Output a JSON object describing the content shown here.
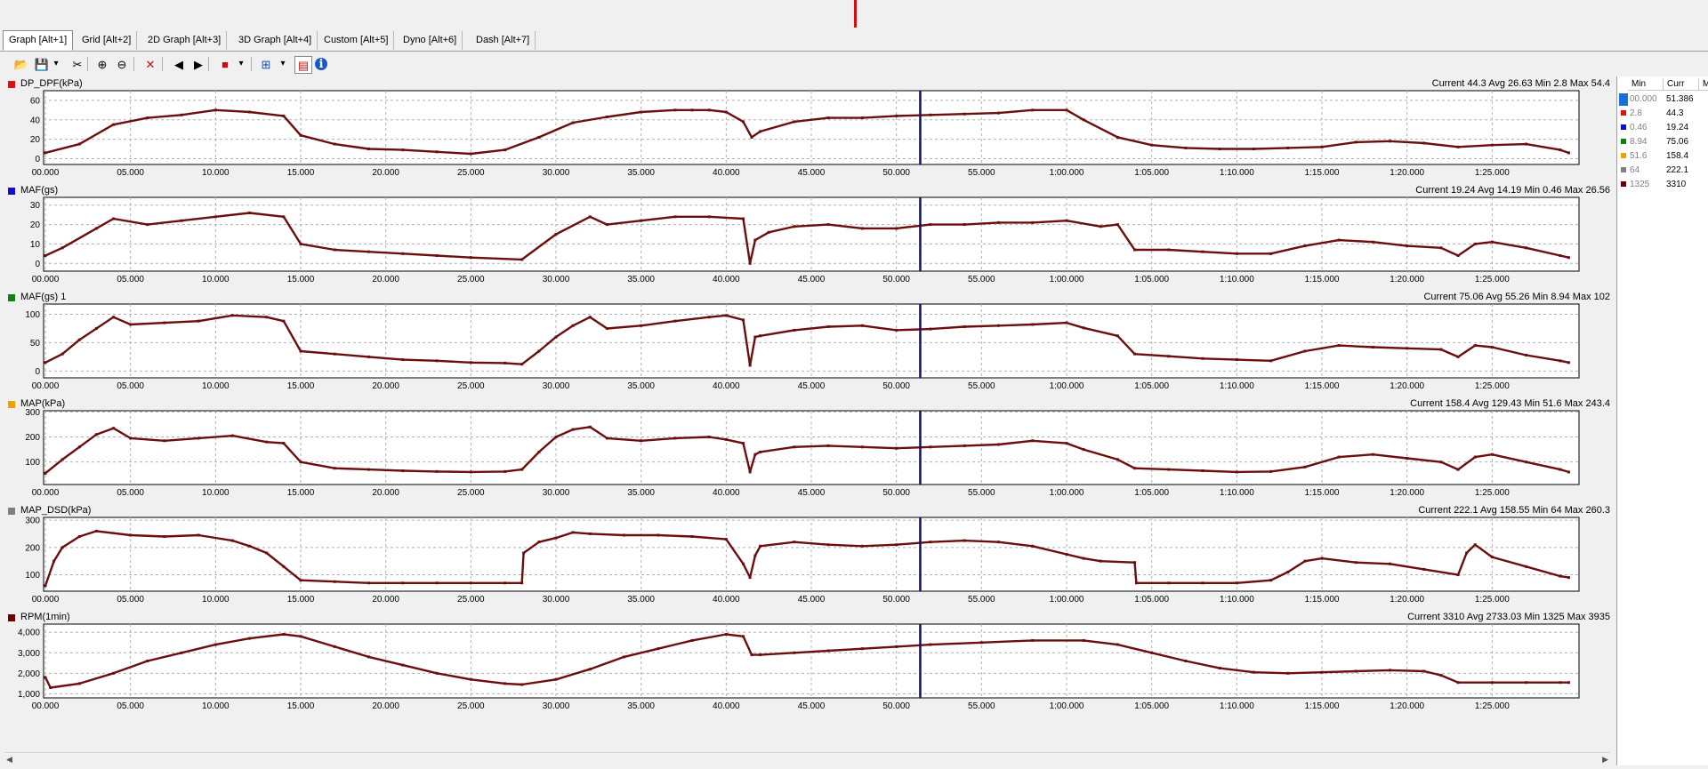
{
  "tabs": [
    {
      "label": "Graph [Alt+1]",
      "active": true
    },
    {
      "label": "Grid [Alt+2]"
    },
    {
      "label": "2D Graph [Alt+3]"
    },
    {
      "label": "3D Graph [Alt+4]"
    },
    {
      "label": "Custom [Alt+5]"
    },
    {
      "label": "Dyno [Alt+6]"
    },
    {
      "label": "Dash [Alt+7]"
    }
  ],
  "toolbar_icons": [
    "open-icon",
    "save-icon",
    "dropdown-icon",
    "cut-icon",
    "zoom-in-icon",
    "zoom-out-icon",
    "delete-icon",
    "prev-icon",
    "next-icon",
    "record-icon",
    "dropdown-icon",
    "layout-icon",
    "dropdown-icon",
    "chart-settings-icon",
    "info-icon"
  ],
  "x_ticks": [
    "00.000",
    "05.000",
    "10.000",
    "15.000",
    "20.000",
    "25.000",
    "30.000",
    "35.000",
    "40.000",
    "45.000",
    "50.000",
    "55.000",
    "1:00.000",
    "1:05.000",
    "1:10.000",
    "1:15.000",
    "1:20.000",
    "1:25.000"
  ],
  "cursor_time_min": 51.4,
  "series_color": "#6b0e0e",
  "cursor_color": "#101070",
  "chart_data": [
    {
      "type": "line",
      "title": "DP_DPF(kPa)",
      "swatch": "#e01010",
      "stats": "Current 44.3 Avg 26.63 Min 2.8 Max 54.4",
      "ylim": [
        -6,
        70
      ],
      "yticks": [
        0,
        20,
        40,
        60
      ],
      "ytick_labels": [
        "0",
        "20",
        "40",
        "60"
      ],
      "x": [
        0,
        2,
        4,
        6,
        8,
        10,
        12,
        14,
        15,
        17,
        19,
        21,
        23,
        25,
        27,
        29,
        31,
        33,
        35,
        37,
        38,
        39,
        40,
        41,
        41.5,
        42,
        44,
        46,
        48,
        50,
        52,
        54,
        56,
        58,
        60,
        61,
        63,
        65,
        67,
        69,
        71,
        73,
        75,
        77,
        79,
        81,
        83,
        85,
        87,
        89,
        89.5
      ],
      "values": [
        6,
        15,
        35,
        42,
        45,
        50,
        48,
        44,
        24,
        15,
        10,
        9,
        7,
        5,
        9,
        22,
        37,
        43,
        48,
        50,
        50,
        50,
        48,
        38,
        22,
        28,
        38,
        42,
        42,
        44,
        45,
        46,
        47,
        50,
        50,
        40,
        22,
        14,
        11,
        10,
        10,
        11,
        12,
        17,
        18,
        16,
        12,
        14,
        15,
        9,
        6
      ]
    },
    {
      "type": "line",
      "title": "MAF(gs)",
      "swatch": "#1010d0",
      "stats": "Current 19.24 Avg 14.19 Min 0.46 Max 26.56",
      "ylim": [
        -4,
        34
      ],
      "yticks": [
        0,
        10,
        20,
        30
      ],
      "ytick_labels": [
        "0",
        "10",
        "20",
        "30"
      ],
      "x": [
        0,
        1,
        3,
        4,
        6,
        8,
        10,
        12,
        14,
        15,
        17,
        19,
        21,
        23,
        25,
        28,
        30,
        32,
        33,
        35,
        37,
        39,
        41,
        41.4,
        41.7,
        42.5,
        44,
        46,
        48,
        50,
        52,
        54,
        56,
        58,
        60,
        62,
        63,
        64,
        66,
        68,
        70,
        72,
        74,
        76,
        78,
        80,
        82,
        83,
        84,
        85,
        87,
        89,
        89.5
      ],
      "values": [
        4,
        8,
        18,
        23,
        20,
        22,
        24,
        26,
        24,
        10,
        7,
        6,
        5,
        4,
        3,
        2,
        15,
        24,
        20,
        22,
        24,
        24,
        23,
        0,
        12,
        16,
        19,
        20,
        18,
        18,
        20,
        20,
        21,
        21,
        22,
        19,
        20,
        7,
        7,
        6,
        5,
        5,
        9,
        12,
        11,
        9,
        8,
        4,
        10,
        11,
        8,
        4,
        3
      ]
    },
    {
      "type": "line",
      "title": "MAF(gs) 1",
      "swatch": "#108010",
      "stats": "Current 75.06 Avg 55.26 Min 8.94 Max 102",
      "ylim": [
        -12,
        118
      ],
      "yticks": [
        0,
        50,
        100
      ],
      "ytick_labels": [
        "0",
        "50",
        "100"
      ],
      "x": [
        0,
        1,
        2,
        3,
        4,
        5,
        7,
        9,
        11,
        13,
        14,
        15,
        17,
        19,
        21,
        23,
        25,
        27,
        28,
        29,
        30,
        31,
        32,
        33,
        35,
        37,
        39,
        40,
        41,
        41.4,
        41.7,
        42,
        44,
        46,
        48,
        50,
        52,
        54,
        56,
        58,
        60,
        61,
        63,
        64,
        66,
        68,
        70,
        72,
        74,
        76,
        78,
        80,
        82,
        83,
        84,
        85,
        87,
        89,
        89.5
      ],
      "values": [
        15,
        30,
        55,
        75,
        95,
        82,
        85,
        88,
        98,
        95,
        88,
        35,
        30,
        25,
        20,
        18,
        15,
        14,
        12,
        35,
        60,
        80,
        95,
        75,
        80,
        88,
        95,
        98,
        90,
        10,
        60,
        62,
        72,
        78,
        80,
        72,
        74,
        78,
        80,
        82,
        85,
        76,
        62,
        30,
        26,
        22,
        20,
        18,
        35,
        45,
        42,
        40,
        38,
        25,
        45,
        42,
        28,
        18,
        15
      ]
    },
    {
      "type": "line",
      "title": "MAP(kPa)",
      "swatch": "#f0a000",
      "stats": "Current 158.4 Avg 129.43 Min 51.6 Max 243.4",
      "ylim": [
        10,
        305
      ],
      "yticks": [
        100,
        200,
        300
      ],
      "ytick_labels": [
        "100",
        "200",
        "300"
      ],
      "x": [
        0,
        1,
        2,
        3,
        4,
        5,
        7,
        9,
        11,
        13,
        14,
        15,
        17,
        19,
        21,
        23,
        25,
        27,
        28,
        29,
        30,
        31,
        32,
        33,
        35,
        37,
        39,
        40,
        41,
        41.4,
        41.7,
        42,
        44,
        46,
        48,
        50,
        52,
        54,
        56,
        58,
        60,
        61,
        63,
        64,
        66,
        68,
        70,
        72,
        74,
        76,
        78,
        80,
        82,
        83,
        84,
        85,
        87,
        89,
        89.5
      ],
      "values": [
        55,
        110,
        160,
        210,
        235,
        195,
        185,
        195,
        205,
        180,
        175,
        100,
        75,
        70,
        65,
        62,
        60,
        62,
        70,
        140,
        200,
        230,
        240,
        195,
        185,
        195,
        200,
        190,
        175,
        60,
        130,
        140,
        160,
        165,
        160,
        155,
        160,
        165,
        170,
        185,
        175,
        150,
        110,
        75,
        70,
        65,
        60,
        62,
        80,
        120,
        130,
        115,
        100,
        70,
        120,
        130,
        100,
        70,
        60
      ]
    },
    {
      "type": "line",
      "title": "MAP_DSD(kPa)",
      "swatch": "#808080",
      "stats": "Current 222.1 Avg 158.55 Min 64 Max 260.3",
      "ylim": [
        40,
        310
      ],
      "yticks": [
        100,
        200,
        300
      ],
      "ytick_labels": [
        "100",
        "200",
        "300"
      ],
      "x": [
        0,
        0.5,
        1,
        2,
        3,
        5,
        7,
        9,
        11,
        12,
        13,
        14,
        15,
        17,
        19,
        21,
        23,
        25,
        27,
        28,
        28.1,
        29,
        30,
        31,
        32,
        34,
        36,
        38,
        40,
        41,
        41.4,
        41.7,
        42,
        44,
        46,
        48,
        50,
        52,
        54,
        56,
        58,
        60,
        61,
        62,
        64,
        64.1,
        66,
        68,
        70,
        72,
        73,
        74,
        75,
        77,
        79,
        81,
        83,
        83.5,
        84,
        85,
        87,
        89,
        89.5
      ],
      "values": [
        60,
        150,
        200,
        240,
        260,
        245,
        240,
        245,
        225,
        205,
        180,
        130,
        80,
        75,
        70,
        70,
        70,
        70,
        70,
        70,
        180,
        220,
        235,
        255,
        250,
        245,
        245,
        240,
        230,
        140,
        90,
        170,
        205,
        220,
        210,
        205,
        210,
        220,
        225,
        220,
        205,
        175,
        160,
        150,
        145,
        70,
        70,
        70,
        70,
        80,
        110,
        150,
        160,
        145,
        140,
        120,
        100,
        180,
        210,
        165,
        130,
        95,
        90
      ]
    },
    {
      "type": "line",
      "title": "RPM(1min)",
      "swatch": "#700000",
      "stats": "Current 3310 Avg 2733.03 Min 1325 Max 3935",
      "ylim": [
        800,
        4400
      ],
      "yticks": [
        1000,
        2000,
        3000,
        4000
      ],
      "ytick_labels": [
        "1,000",
        "2,000",
        "3,000",
        "4,000"
      ],
      "x": [
        0,
        0.3,
        2,
        4,
        6,
        8,
        10,
        12,
        14,
        15,
        17,
        19,
        21,
        23,
        25,
        27,
        28,
        30,
        32,
        34,
        36,
        38,
        40,
        41,
        41.5,
        42,
        44,
        46,
        48,
        50,
        52,
        55,
        58,
        61,
        63,
        65,
        67,
        69,
        71,
        73,
        75,
        77,
        79,
        81,
        82,
        83,
        85,
        87,
        89,
        89.5
      ],
      "values": [
        1800,
        1300,
        1500,
        2000,
        2600,
        3000,
        3400,
        3700,
        3900,
        3800,
        3300,
        2800,
        2400,
        2000,
        1700,
        1500,
        1450,
        1700,
        2200,
        2800,
        3200,
        3600,
        3900,
        3800,
        2900,
        2900,
        3000,
        3100,
        3200,
        3300,
        3400,
        3500,
        3600,
        3600,
        3400,
        3000,
        2600,
        2250,
        2050,
        2000,
        2050,
        2100,
        2150,
        2100,
        1900,
        1550,
        1550,
        1550,
        1550,
        1550
      ]
    }
  ],
  "legend": {
    "headers": [
      "Min",
      "Curr",
      "M"
    ],
    "rows": [
      {
        "color": "#1a6fd8",
        "min": "00.000",
        "cur": "51.386",
        "selected": true
      },
      {
        "color": "#e01010",
        "min": "2.8",
        "cur": "44.3"
      },
      {
        "color": "#1010d0",
        "min": "0.46",
        "cur": "19.24"
      },
      {
        "color": "#108010",
        "min": "8.94",
        "cur": "75.06"
      },
      {
        "color": "#f0a000",
        "min": "51.6",
        "cur": "158.4"
      },
      {
        "color": "#808080",
        "min": "64",
        "cur": "222.1"
      },
      {
        "color": "#700000",
        "min": "1325",
        "cur": "3310"
      }
    ]
  }
}
